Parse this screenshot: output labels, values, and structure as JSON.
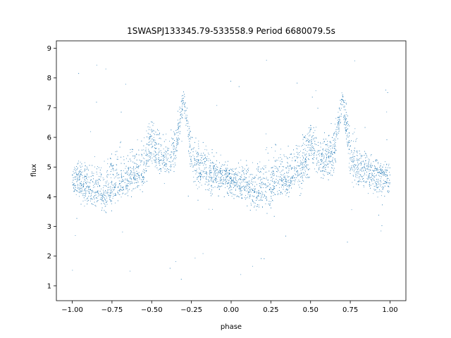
{
  "chart_data": {
    "type": "scatter",
    "title": "1SWASPJ133345.79-533558.9 Period 6680079.5s",
    "xlabel": "phase",
    "ylabel": "flux",
    "xlim": [
      -1.1,
      1.1
    ],
    "ylim": [
      0.5,
      9.25
    ],
    "xticks": [
      -1.0,
      -0.75,
      -0.5,
      -0.25,
      0.0,
      0.25,
      0.5,
      0.75,
      1.0
    ],
    "xtick_labels": [
      "−1.00",
      "−0.75",
      "−0.50",
      "−0.25",
      "0.00",
      "0.25",
      "0.50",
      "0.75",
      "1.00"
    ],
    "yticks": [
      1,
      2,
      3,
      4,
      5,
      6,
      7,
      8,
      9
    ],
    "ytick_labels": [
      "1",
      "2",
      "3",
      "4",
      "5",
      "6",
      "7",
      "8",
      "9"
    ],
    "grid": false,
    "marker_color": "#1f77b4",
    "series": [
      {
        "x": [
          -1.0,
          -0.95,
          -0.9,
          -0.85,
          -0.8,
          -0.75,
          -0.7,
          -0.65,
          -0.6,
          -0.55,
          -0.5,
          -0.45,
          -0.4,
          -0.35,
          -0.3,
          -0.25,
          -0.2,
          -0.15,
          -0.1,
          -0.05,
          0.0,
          0.05,
          0.1,
          0.15,
          0.2,
          0.25,
          0.3,
          0.35,
          0.4,
          0.45,
          0.5,
          0.55,
          0.6,
          0.65,
          0.7,
          0.75,
          0.8,
          0.85,
          0.9,
          0.95,
          1.0
        ],
        "y": [
          4.6,
          4.5,
          4.4,
          4.2,
          4.1,
          4.3,
          4.6,
          4.6,
          4.8,
          5.0,
          5.8,
          5.4,
          5.2,
          5.6,
          7.3,
          5.5,
          5.0,
          4.9,
          4.8,
          4.7,
          4.6,
          4.5,
          4.4,
          4.2,
          4.1,
          4.3,
          4.6,
          4.6,
          4.8,
          5.0,
          5.8,
          5.4,
          5.2,
          5.6,
          7.3,
          5.5,
          5.0,
          4.9,
          4.8,
          4.7,
          4.6
        ],
        "y_low": [
          3.9,
          3.7,
          3.5,
          3.3,
          3.2,
          3.4,
          3.7,
          3.8,
          3.9,
          4.0,
          4.5,
          4.4,
          4.3,
          4.5,
          6.8,
          4.3,
          4.0,
          3.9,
          3.8,
          3.8,
          3.8,
          3.7,
          3.5,
          3.3,
          3.2,
          3.4,
          3.7,
          3.8,
          3.9,
          4.0,
          4.5,
          4.4,
          4.3,
          4.5,
          6.8,
          4.3,
          4.0,
          3.9,
          3.8,
          3.8,
          3.9
        ],
        "y_high": [
          5.3,
          5.4,
          5.5,
          5.6,
          5.8,
          6.1,
          6.2,
          5.8,
          6.0,
          6.4,
          7.2,
          6.3,
          6.4,
          6.7,
          7.8,
          6.8,
          6.2,
          5.8,
          5.6,
          5.4,
          5.2,
          5.3,
          5.4,
          5.6,
          5.8,
          6.1,
          6.2,
          5.8,
          6.0,
          6.4,
          7.2,
          6.3,
          6.4,
          6.7,
          7.8,
          6.8,
          6.2,
          5.8,
          5.6,
          5.4,
          5.3
        ]
      }
    ]
  }
}
